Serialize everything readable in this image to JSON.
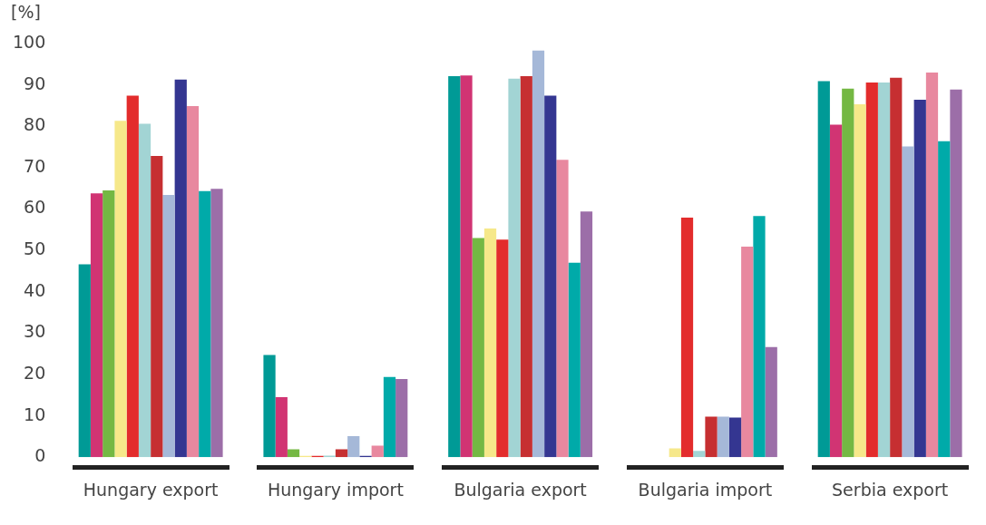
{
  "chart_data": {
    "type": "bar",
    "ylabel": "[%]",
    "categories": [
      "Hungary export",
      "Hungary import",
      "Bulgaria export",
      "Bulgaria import",
      "Serbia export"
    ],
    "series": [
      {
        "color": "#009a96",
        "values": [
          46.6,
          24.7,
          92.1,
          null,
          90.9
        ]
      },
      {
        "color": "#d13473",
        "values": [
          63.8,
          14.5,
          92.3,
          null,
          80.4
        ]
      },
      {
        "color": "#74b843",
        "values": [
          64.5,
          1.9,
          53,
          null,
          89.1
        ]
      },
      {
        "color": "#f6e88a",
        "values": [
          81.3,
          0.3,
          55.3,
          2.1,
          85.3
        ]
      },
      {
        "color": "#e32c2c",
        "values": [
          87.4,
          0.3,
          52.6,
          57.9,
          90.6
        ]
      },
      {
        "color": "#a2d4d4",
        "values": [
          80.6,
          0.4,
          91.5,
          1.5,
          90.6
        ]
      },
      {
        "color": "#c62f31",
        "values": [
          72.8,
          1.9,
          92.1,
          9.8,
          91.7
        ]
      },
      {
        "color": "#a5b8d8",
        "values": [
          63.4,
          5.1,
          98.3,
          9.8,
          75.1
        ]
      },
      {
        "color": "#343691",
        "values": [
          91.3,
          0.3,
          87.4,
          9.6,
          86.4
        ]
      },
      {
        "color": "#e8889f",
        "values": [
          84.9,
          2.8,
          71.9,
          50.9,
          93
        ]
      },
      {
        "color": "#00aaa9",
        "values": [
          64.3,
          19.4,
          47,
          58.3,
          76.4
        ]
      },
      {
        "color": "#9c6ea8",
        "values": [
          64.9,
          18.9,
          59.4,
          26.6,
          88.9
        ]
      }
    ],
    "ylim": [
      0,
      100
    ],
    "yticks": [
      0,
      10,
      20,
      30,
      40,
      50,
      60,
      70,
      80,
      90,
      100
    ],
    "grid": false,
    "legend": false
  }
}
